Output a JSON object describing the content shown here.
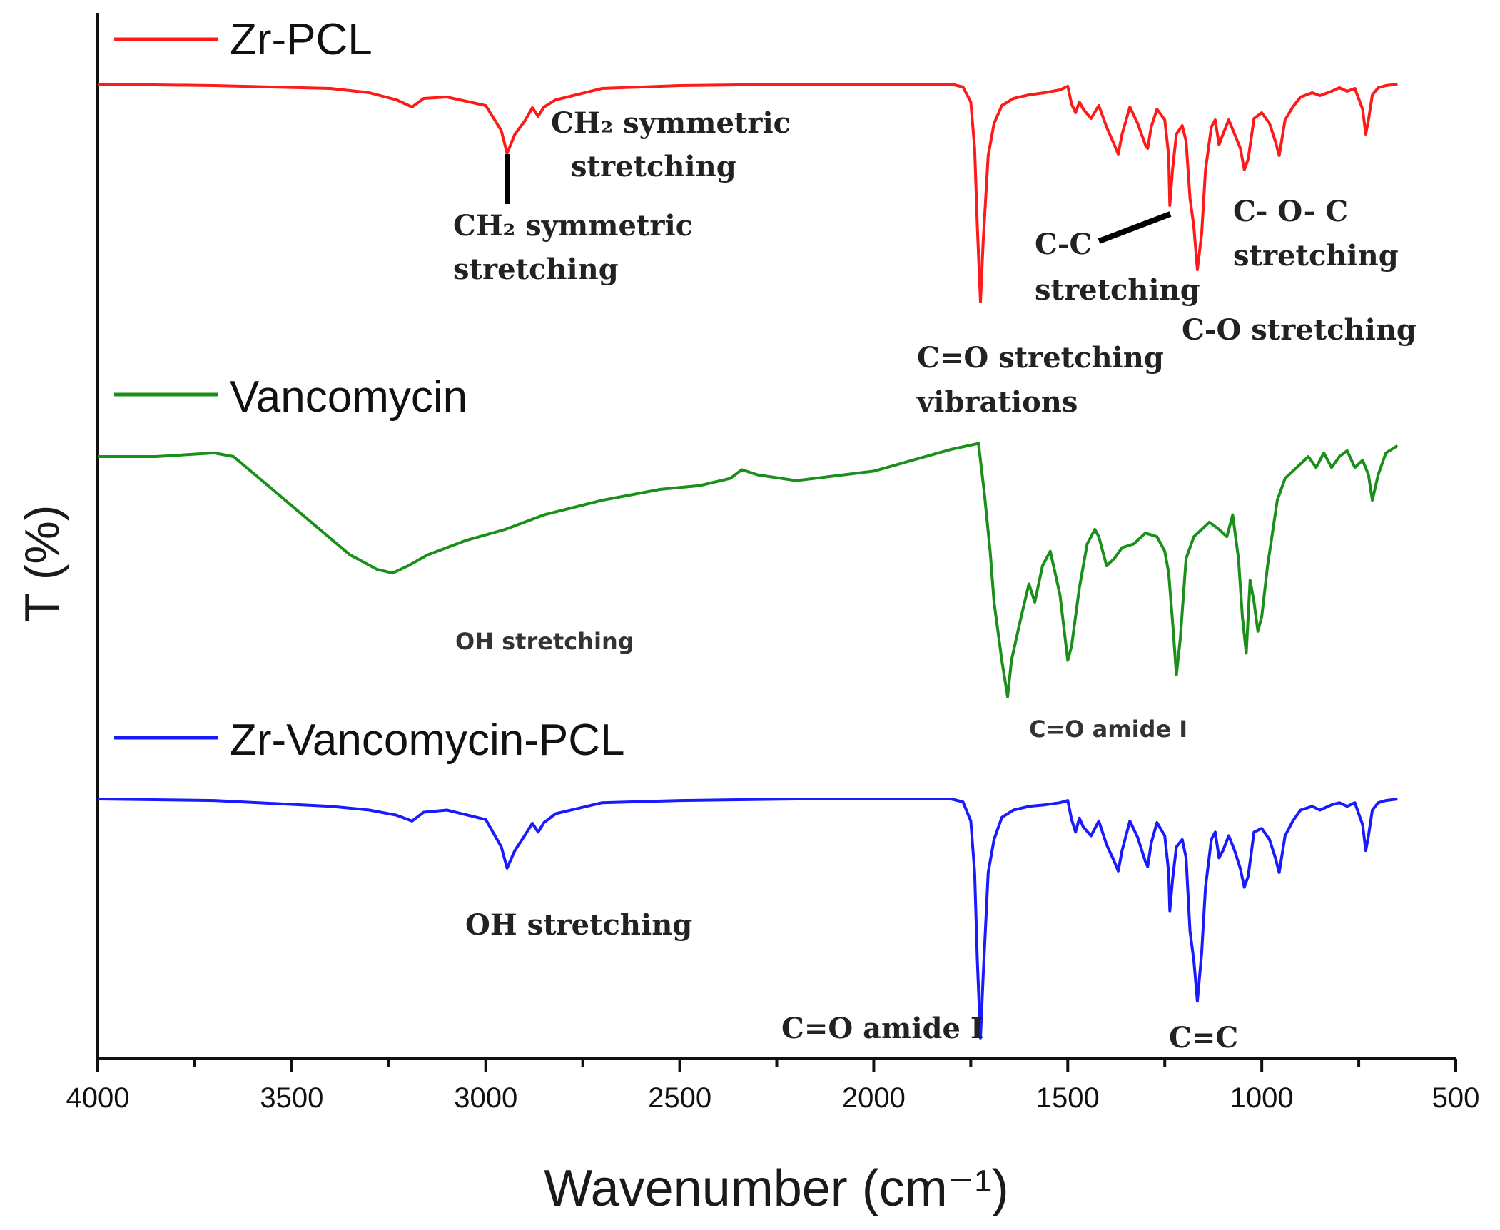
{
  "chart_data": {
    "type": "line",
    "title": "",
    "xlabel": "Wavenumber (cm⁻¹)",
    "ylabel": "T (%)",
    "xlim": [
      4000,
      500
    ],
    "xticks": [
      4000,
      3500,
      3000,
      2500,
      2000,
      1500,
      1000,
      500
    ],
    "grid": false,
    "legend": "inline",
    "series": [
      {
        "name": "Zr-PCL",
        "color": "#ff1a1a",
        "baseline": 0,
        "x": [
          4000,
          3700,
          3400,
          3300,
          3230,
          3190,
          3160,
          3100,
          3000,
          2960,
          2945,
          2925,
          2900,
          2880,
          2865,
          2850,
          2820,
          2700,
          2500,
          2200,
          1800,
          1770,
          1750,
          1740,
          1733,
          1725,
          1718,
          1705,
          1690,
          1670,
          1640,
          1600,
          1560,
          1520,
          1500,
          1490,
          1480,
          1470,
          1460,
          1440,
          1420,
          1400,
          1380,
          1370,
          1360,
          1340,
          1320,
          1300,
          1294,
          1285,
          1270,
          1250,
          1240,
          1237,
          1230,
          1220,
          1205,
          1195,
          1185,
          1175,
          1166,
          1155,
          1145,
          1130,
          1120,
          1110,
          1100,
          1085,
          1070,
          1055,
          1045,
          1035,
          1020,
          1000,
          980,
          965,
          955,
          940,
          920,
          900,
          870,
          850,
          820,
          800,
          780,
          760,
          740,
          732,
          725,
          715,
          700,
          680,
          650
        ],
        "y": [
          0,
          0.2,
          0.6,
          1.2,
          2.2,
          3.2,
          2.0,
          1.8,
          3.0,
          6.5,
          9.7,
          7.0,
          5.2,
          3.3,
          4.5,
          3.2,
          2.2,
          0.6,
          0.2,
          0.0,
          0.0,
          0.4,
          2.5,
          9.0,
          20.0,
          30.5,
          22.0,
          10.0,
          5.5,
          3.0,
          2.0,
          1.5,
          1.2,
          0.8,
          0.3,
          2.8,
          4.0,
          2.5,
          3.5,
          4.8,
          3.0,
          6.0,
          8.5,
          9.8,
          7.0,
          3.2,
          5.5,
          8.5,
          9.0,
          6.0,
          3.5,
          5.0,
          10.0,
          17.0,
          12.0,
          7.0,
          5.8,
          8.0,
          16.0,
          20.0,
          26.0,
          21.0,
          12.0,
          6.0,
          5.0,
          8.5,
          7.0,
          5.0,
          7.0,
          9.0,
          12.0,
          10.5,
          4.8,
          4.0,
          5.5,
          8.0,
          10.0,
          5.0,
          3.2,
          1.8,
          1.2,
          1.6,
          1.0,
          0.5,
          1.0,
          0.6,
          3.5,
          7.0,
          5.0,
          1.5,
          0.5,
          0.2,
          0.0
        ]
      },
      {
        "name": "Vancomycin",
        "color": "#1a8f1a",
        "baseline": 0,
        "x": [
          4000,
          3850,
          3700,
          3650,
          3550,
          3450,
          3350,
          3280,
          3240,
          3200,
          3150,
          3050,
          2950,
          2850,
          2700,
          2550,
          2450,
          2370,
          2340,
          2300,
          2200,
          2000,
          1900,
          1800,
          1730,
          1715,
          1700,
          1690,
          1670,
          1655,
          1645,
          1620,
          1600,
          1585,
          1565,
          1545,
          1520,
          1500,
          1490,
          1470,
          1450,
          1430,
          1420,
          1400,
          1380,
          1360,
          1330,
          1300,
          1270,
          1250,
          1240,
          1228,
          1220,
          1210,
          1195,
          1175,
          1155,
          1135,
          1110,
          1090,
          1075,
          1060,
          1050,
          1040,
          1030,
          1020,
          1010,
          1000,
          985,
          960,
          940,
          920,
          900,
          880,
          860,
          840,
          820,
          800,
          780,
          760,
          740,
          725,
          715,
          700,
          680,
          650
        ],
        "y": [
          0,
          0,
          -0.5,
          0,
          4.5,
          9.0,
          13.5,
          15.5,
          16.0,
          15.0,
          13.5,
          11.5,
          10.0,
          8.0,
          6.0,
          4.5,
          4.0,
          3.0,
          1.8,
          2.5,
          3.3,
          2.0,
          0.5,
          -1.0,
          -1.8,
          5.0,
          13.0,
          20.0,
          28.0,
          33.0,
          28.0,
          22.0,
          17.5,
          20.0,
          15.0,
          13.0,
          19.0,
          28.0,
          26.0,
          18.0,
          12.0,
          10.0,
          11.0,
          15.0,
          14.0,
          12.5,
          12.0,
          10.5,
          11.0,
          13.0,
          16.0,
          24.0,
          30.0,
          25.0,
          14.0,
          11.0,
          10.0,
          9.0,
          10.0,
          11.0,
          8.0,
          14.0,
          22.0,
          27.0,
          17.0,
          20.0,
          24.0,
          22.0,
          15.0,
          6.0,
          3.0,
          2.0,
          1.0,
          0.0,
          1.5,
          -0.5,
          1.5,
          0.0,
          -0.8,
          1.5,
          0.5,
          2.5,
          6.0,
          2.5,
          -0.5,
          -1.5
        ]
      },
      {
        "name": "Zr-Vancomycin-PCL",
        "color": "#1a1aff",
        "baseline": 0,
        "x": [
          4000,
          3700,
          3400,
          3300,
          3230,
          3190,
          3160,
          3100,
          3000,
          2960,
          2945,
          2925,
          2900,
          2880,
          2865,
          2850,
          2820,
          2700,
          2500,
          2200,
          1800,
          1770,
          1750,
          1740,
          1733,
          1725,
          1718,
          1705,
          1690,
          1670,
          1640,
          1600,
          1560,
          1520,
          1500,
          1490,
          1480,
          1470,
          1460,
          1440,
          1420,
          1400,
          1380,
          1370,
          1360,
          1340,
          1320,
          1300,
          1294,
          1285,
          1270,
          1250,
          1240,
          1237,
          1230,
          1220,
          1205,
          1195,
          1185,
          1175,
          1166,
          1155,
          1145,
          1130,
          1120,
          1110,
          1100,
          1085,
          1070,
          1055,
          1045,
          1035,
          1020,
          1000,
          980,
          965,
          955,
          940,
          920,
          900,
          870,
          850,
          820,
          800,
          780,
          760,
          740,
          732,
          725,
          715,
          700,
          680,
          650
        ],
        "y": [
          0,
          0.2,
          1.0,
          1.5,
          2.2,
          3.0,
          1.8,
          1.5,
          2.8,
          6.5,
          9.4,
          7.0,
          5.0,
          3.3,
          4.5,
          3.2,
          2.0,
          0.5,
          0.2,
          0.0,
          0.0,
          0.4,
          3.0,
          10.0,
          22.0,
          32.5,
          24.0,
          10.0,
          5.5,
          2.5,
          1.5,
          1.0,
          0.8,
          0.5,
          0.2,
          2.8,
          4.5,
          2.6,
          3.8,
          5.0,
          3.0,
          6.2,
          8.5,
          9.8,
          7.0,
          3.0,
          5.2,
          8.5,
          9.2,
          6.0,
          3.2,
          5.0,
          10.0,
          15.2,
          11.0,
          6.5,
          5.5,
          8.0,
          18.0,
          22.0,
          27.5,
          21.0,
          12.0,
          5.5,
          4.5,
          8.0,
          7.0,
          5.0,
          7.0,
          9.5,
          12.0,
          10.5,
          4.5,
          4.0,
          5.5,
          8.0,
          10.0,
          5.0,
          3.0,
          1.5,
          1.0,
          1.5,
          0.8,
          0.5,
          1.0,
          0.5,
          3.5,
          7.0,
          5.0,
          1.5,
          0.5,
          0.2,
          0.0
        ]
      }
    ],
    "annotations": [
      {
        "series": "Zr-PCL",
        "lines": [
          "CH₂ symmetric",
          "stretching"
        ]
      },
      {
        "series": "Zr-PCL",
        "lines": [
          "CH₂ symmetric",
          "stretching"
        ]
      },
      {
        "series": "Zr-PCL",
        "lines": [
          "C=O stretching",
          "vibrations"
        ]
      },
      {
        "series": "Zr-PCL",
        "lines": [
          "C-C",
          "stretching"
        ]
      },
      {
        "series": "Zr-PCL",
        "lines": [
          "C- O- C",
          "stretching"
        ]
      },
      {
        "series": "Zr-PCL",
        "lines": [
          "C-O stretching"
        ]
      },
      {
        "series": "Vancomycin",
        "lines": [
          "OH stretching"
        ]
      },
      {
        "series": "Vancomycin",
        "lines": [
          "C=O amide I"
        ]
      },
      {
        "series": "Zr-Vancomycin-PCL",
        "lines": [
          "OH stretching"
        ]
      },
      {
        "series": "Zr-Vancomycin-PCL",
        "lines": [
          "C=O amide I"
        ]
      },
      {
        "series": "Zr-Vancomycin-PCL",
        "lines": [
          "C=C"
        ]
      }
    ]
  }
}
